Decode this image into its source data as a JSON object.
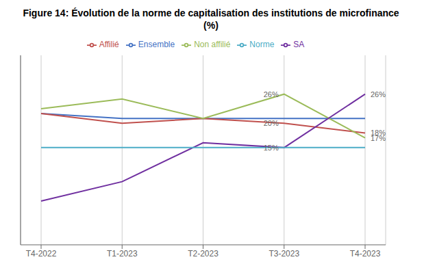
{
  "chart_data": {
    "type": "line",
    "title": "Figure 14: Évolution de la norme de capitalisation des institutions de microfinance (%)",
    "categories": [
      "T4-2022",
      "T1-2023",
      "T2-2023",
      "T3-2023",
      "T4-2023"
    ],
    "series": [
      {
        "name": "Ensemble",
        "color": "#4472C4",
        "values": [
          22,
          21,
          21,
          21,
          21
        ]
      },
      {
        "name": "Affilié",
        "color": "#C0504D",
        "values": [
          22,
          20,
          21,
          20,
          18
        ]
      },
      {
        "name": "Non affilié",
        "color": "#9BBB59",
        "values": [
          23,
          25,
          21,
          26,
          17
        ]
      },
      {
        "name": "SA",
        "color": "#7030A0",
        "values": [
          4,
          8,
          16,
          15,
          26
        ]
      },
      {
        "name": "Norme",
        "color": "#4BACC6",
        "values": [
          15,
          15,
          15,
          15,
          15
        ]
      }
    ],
    "annotations": [
      {
        "text": "26%",
        "x": "T3-2023",
        "y": 26
      },
      {
        "text": "20%",
        "x": "T3-2023",
        "y": 20
      },
      {
        "text": "15%",
        "x": "T3-2023",
        "y": 15
      },
      {
        "text": "26%",
        "x": "T4-2023",
        "y": 26
      },
      {
        "text": "18%",
        "x": "T4-2023",
        "y": 18
      },
      {
        "text": "17%",
        "x": "T4-2023",
        "y": 17
      }
    ],
    "ylim": [
      -5,
      34
    ],
    "grid": true,
    "legend": "top",
    "tick_labels": "x"
  }
}
